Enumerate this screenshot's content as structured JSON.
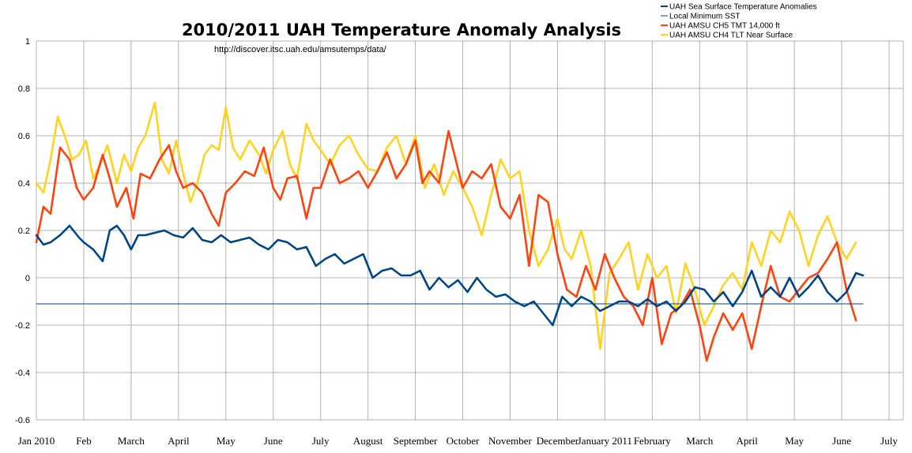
{
  "chart_data": {
    "type": "line",
    "title": "2010/2011 UAH Temperature Anomaly Analysis",
    "subtitle": "http://discover.itsc.uah.edu/amsutemps/data/",
    "xlabel": "",
    "ylabel": "",
    "ylim": [
      -0.6,
      1.0
    ],
    "yticks": [
      "1",
      "0.8",
      "0.6",
      "0.4",
      "0.2",
      "0",
      "-0.2",
      "-0.4",
      "-0.6"
    ],
    "ytick_values": [
      1.0,
      0.8,
      0.6,
      0.4,
      0.2,
      0.0,
      -0.2,
      -0.4,
      -0.6
    ],
    "xlim": [
      0,
      18.3
    ],
    "x_month_labels": [
      "Jan 2010",
      "Feb",
      "March",
      "April",
      "May",
      "June",
      "July",
      "August",
      "September",
      "October",
      "November",
      "December",
      "January 2011",
      "February",
      "March",
      "April",
      "May",
      "June",
      "July"
    ],
    "grid": true,
    "legend_position": "top-right",
    "series": [
      {
        "name": "UAH Sea Surface Temperature Anomalies",
        "color": "#004586",
        "x": [
          0.0,
          0.15,
          0.3,
          0.5,
          0.7,
          0.9,
          1.0,
          1.2,
          1.4,
          1.55,
          1.7,
          1.85,
          2.0,
          2.15,
          2.3,
          2.5,
          2.7,
          2.9,
          3.1,
          3.3,
          3.5,
          3.7,
          3.9,
          4.1,
          4.3,
          4.5,
          4.7,
          4.9,
          5.1,
          5.3,
          5.5,
          5.7,
          5.9,
          6.1,
          6.3,
          6.5,
          6.7,
          6.9,
          7.1,
          7.3,
          7.5,
          7.7,
          7.9,
          8.1,
          8.3,
          8.5,
          8.7,
          8.9,
          9.1,
          9.3,
          9.5,
          9.7,
          9.9,
          10.1,
          10.3,
          10.5,
          10.7,
          10.9,
          11.1,
          11.3,
          11.5,
          11.7,
          11.9,
          12.1,
          12.3,
          12.5,
          12.7,
          12.9,
          13.1,
          13.3,
          13.5,
          13.7,
          13.9,
          14.1,
          14.3,
          14.5,
          14.7,
          14.9,
          15.1,
          15.3,
          15.5,
          15.7,
          15.9,
          16.1,
          16.3,
          16.5,
          16.7,
          16.9,
          17.1,
          17.3,
          17.45
        ],
        "values": [
          0.18,
          0.14,
          0.15,
          0.18,
          0.22,
          0.17,
          0.15,
          0.12,
          0.07,
          0.2,
          0.22,
          0.18,
          0.12,
          0.18,
          0.18,
          0.19,
          0.2,
          0.18,
          0.17,
          0.21,
          0.16,
          0.15,
          0.18,
          0.15,
          0.16,
          0.17,
          0.14,
          0.12,
          0.16,
          0.15,
          0.12,
          0.13,
          0.05,
          0.08,
          0.1,
          0.06,
          0.08,
          0.1,
          0.0,
          0.03,
          0.04,
          0.01,
          0.01,
          0.03,
          -0.05,
          0.0,
          -0.04,
          -0.01,
          -0.06,
          0.0,
          -0.05,
          -0.08,
          -0.07,
          -0.1,
          -0.12,
          -0.1,
          -0.15,
          -0.2,
          -0.08,
          -0.12,
          -0.08,
          -0.1,
          -0.14,
          -0.12,
          -0.1,
          -0.1,
          -0.12,
          -0.09,
          -0.12,
          -0.1,
          -0.14,
          -0.1,
          -0.04,
          -0.05,
          -0.1,
          -0.06,
          -0.12,
          -0.06,
          0.03,
          -0.08,
          -0.04,
          -0.08,
          0.0,
          -0.08,
          -0.04,
          0.01,
          -0.06,
          -0.1,
          -0.06,
          0.02,
          0.01
        ]
      },
      {
        "name": "Local Minimum SST",
        "color": "#004586",
        "x": [
          0.0,
          17.45
        ],
        "values": [
          -0.11,
          -0.11
        ]
      },
      {
        "name": "UAH AMSU CH5 TMT 14,000 ft",
        "color": "#ff420e",
        "x": [
          0.0,
          0.15,
          0.3,
          0.5,
          0.7,
          0.85,
          1.0,
          1.2,
          1.4,
          1.55,
          1.7,
          1.9,
          2.05,
          2.2,
          2.4,
          2.6,
          2.8,
          2.95,
          3.1,
          3.3,
          3.5,
          3.7,
          3.85,
          4.0,
          4.2,
          4.4,
          4.6,
          4.8,
          5.0,
          5.15,
          5.3,
          5.5,
          5.7,
          5.85,
          6.0,
          6.2,
          6.4,
          6.6,
          6.8,
          7.0,
          7.2,
          7.4,
          7.6,
          7.8,
          8.0,
          8.15,
          8.3,
          8.5,
          8.7,
          8.85,
          9.0,
          9.2,
          9.4,
          9.6,
          9.8,
          10.0,
          10.2,
          10.4,
          10.6,
          10.8,
          11.0,
          11.2,
          11.4,
          11.6,
          11.8,
          12.0,
          12.2,
          12.4,
          12.6,
          12.8,
          13.0,
          13.2,
          13.4,
          13.6,
          13.8,
          14.0,
          14.15,
          14.3,
          14.5,
          14.7,
          14.9,
          15.1,
          15.3,
          15.5,
          15.7,
          15.9,
          16.1,
          16.3,
          16.5,
          16.7,
          16.9,
          17.1,
          17.3
        ],
        "values": [
          0.15,
          0.3,
          0.27,
          0.55,
          0.5,
          0.38,
          0.33,
          0.38,
          0.52,
          0.42,
          0.3,
          0.38,
          0.25,
          0.44,
          0.42,
          0.5,
          0.56,
          0.45,
          0.38,
          0.4,
          0.36,
          0.27,
          0.22,
          0.36,
          0.4,
          0.45,
          0.43,
          0.55,
          0.38,
          0.33,
          0.42,
          0.43,
          0.25,
          0.38,
          0.38,
          0.5,
          0.4,
          0.42,
          0.45,
          0.38,
          0.45,
          0.53,
          0.42,
          0.48,
          0.58,
          0.4,
          0.45,
          0.4,
          0.62,
          0.5,
          0.38,
          0.45,
          0.42,
          0.48,
          0.3,
          0.25,
          0.35,
          0.05,
          0.35,
          0.32,
          0.1,
          -0.05,
          -0.08,
          0.05,
          -0.05,
          0.1,
          0.0,
          -0.08,
          -0.12,
          -0.2,
          0.0,
          -0.28,
          -0.15,
          -0.12,
          -0.05,
          -0.2,
          -0.35,
          -0.25,
          -0.15,
          -0.22,
          -0.15,
          -0.3,
          -0.12,
          0.05,
          -0.08,
          -0.1,
          -0.05,
          0.0,
          0.02,
          0.08,
          0.15,
          -0.05,
          -0.18
        ]
      },
      {
        "name": "UAH AMSU CH4 TLT Near Surface",
        "color": "#ffd320",
        "x": [
          0.0,
          0.15,
          0.3,
          0.45,
          0.6,
          0.75,
          0.9,
          1.05,
          1.2,
          1.35,
          1.5,
          1.7,
          1.85,
          2.0,
          2.15,
          2.3,
          2.5,
          2.65,
          2.8,
          2.95,
          3.1,
          3.25,
          3.4,
          3.55,
          3.7,
          3.85,
          4.0,
          4.15,
          4.3,
          4.5,
          4.7,
          4.85,
          5.0,
          5.2,
          5.35,
          5.5,
          5.7,
          5.85,
          6.0,
          6.2,
          6.4,
          6.6,
          6.8,
          7.0,
          7.2,
          7.4,
          7.6,
          7.8,
          8.0,
          8.2,
          8.4,
          8.6,
          8.8,
          9.0,
          9.2,
          9.4,
          9.6,
          9.8,
          10.0,
          10.2,
          10.4,
          10.6,
          10.8,
          11.0,
          11.15,
          11.3,
          11.5,
          11.7,
          11.9,
          12.1,
          12.3,
          12.5,
          12.7,
          12.9,
          13.1,
          13.3,
          13.5,
          13.7,
          13.9,
          14.1,
          14.3,
          14.5,
          14.7,
          14.9,
          15.1,
          15.3,
          15.5,
          15.7,
          15.9,
          16.1,
          16.3,
          16.5,
          16.7,
          16.9,
          17.1,
          17.3
        ],
        "values": [
          0.4,
          0.36,
          0.5,
          0.68,
          0.6,
          0.5,
          0.52,
          0.58,
          0.42,
          0.48,
          0.56,
          0.4,
          0.52,
          0.45,
          0.55,
          0.6,
          0.74,
          0.5,
          0.44,
          0.58,
          0.44,
          0.32,
          0.4,
          0.52,
          0.56,
          0.54,
          0.72,
          0.55,
          0.5,
          0.58,
          0.52,
          0.44,
          0.54,
          0.62,
          0.48,
          0.42,
          0.65,
          0.58,
          0.54,
          0.48,
          0.56,
          0.6,
          0.52,
          0.46,
          0.45,
          0.55,
          0.6,
          0.48,
          0.6,
          0.38,
          0.48,
          0.35,
          0.45,
          0.38,
          0.3,
          0.18,
          0.35,
          0.5,
          0.42,
          0.45,
          0.2,
          0.05,
          0.12,
          0.25,
          0.12,
          0.08,
          0.2,
          0.05,
          -0.3,
          0.02,
          0.08,
          0.15,
          -0.05,
          0.1,
          0.0,
          0.05,
          -0.15,
          0.06,
          -0.05,
          -0.2,
          -0.12,
          -0.03,
          0.02,
          -0.05,
          0.15,
          0.05,
          0.2,
          0.15,
          0.28,
          0.2,
          0.05,
          0.18,
          0.26,
          0.15,
          0.08,
          0.15
        ]
      }
    ]
  }
}
